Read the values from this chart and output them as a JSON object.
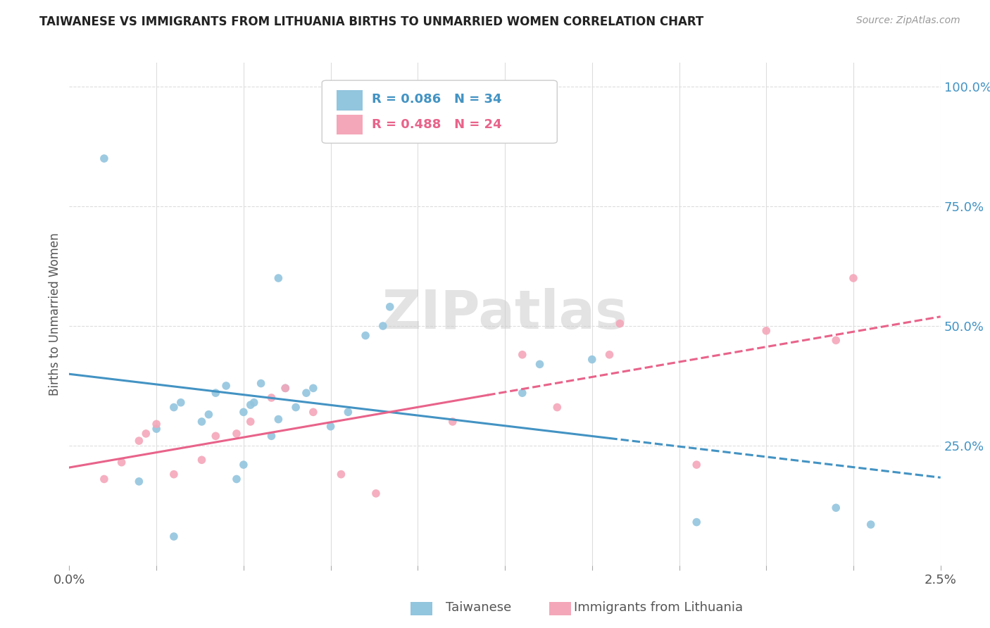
{
  "title": "TAIWANESE VS IMMIGRANTS FROM LITHUANIA BIRTHS TO UNMARRIED WOMEN CORRELATION CHART",
  "source": "Source: ZipAtlas.com",
  "ylabel": "Births to Unmarried Women",
  "legend_blue": {
    "R": "0.086",
    "N": "34",
    "label": "Taiwanese"
  },
  "legend_pink": {
    "R": "0.488",
    "N": "24",
    "label": "Immigrants from Lithuania"
  },
  "blue_color": "#92c5de",
  "pink_color": "#f4a7b9",
  "blue_line_color": "#4393c3",
  "pink_line_color": "#e8638a",
  "watermark": "ZIPatlas",
  "tw_x": [
    0.0002,
    0.00025,
    0.0003,
    0.00032,
    0.00038,
    0.0004,
    0.00042,
    0.00045,
    0.00048,
    0.0005,
    0.0005,
    0.00052,
    0.00053,
    0.00055,
    0.00058,
    0.0006,
    0.00062,
    0.00065,
    0.00068,
    0.0007,
    0.00075,
    0.0008,
    0.00085,
    0.0009,
    0.00092,
    0.0013,
    0.00135,
    0.0015,
    0.0018,
    0.0022,
    0.0023,
    0.0001,
    0.0006,
    0.0003
  ],
  "tw_y": [
    0.175,
    0.285,
    0.33,
    0.34,
    0.3,
    0.315,
    0.36,
    0.375,
    0.18,
    0.21,
    0.32,
    0.335,
    0.34,
    0.38,
    0.27,
    0.305,
    0.37,
    0.33,
    0.36,
    0.37,
    0.29,
    0.32,
    0.48,
    0.5,
    0.54,
    0.36,
    0.42,
    0.43,
    0.09,
    0.12,
    0.085,
    0.85,
    0.6,
    0.06
  ],
  "lith_x": [
    0.0001,
    0.00015,
    0.0002,
    0.00022,
    0.00025,
    0.0003,
    0.00038,
    0.00042,
    0.00048,
    0.00052,
    0.00058,
    0.00062,
    0.0007,
    0.00078,
    0.00088,
    0.0011,
    0.0013,
    0.0014,
    0.00155,
    0.00158,
    0.0018,
    0.002,
    0.0022,
    0.00225
  ],
  "lith_y": [
    0.18,
    0.215,
    0.26,
    0.275,
    0.295,
    0.19,
    0.22,
    0.27,
    0.275,
    0.3,
    0.35,
    0.37,
    0.32,
    0.19,
    0.15,
    0.3,
    0.44,
    0.33,
    0.44,
    0.505,
    0.21,
    0.49,
    0.47,
    0.6
  ],
  "xlim": [
    0.0,
    0.0025
  ],
  "ylim": [
    0.0,
    1.05
  ],
  "yticks": [
    0.25,
    0.5,
    0.75,
    1.0
  ],
  "yticklabels": [
    "25.0%",
    "50.0%",
    "75.0%",
    "100.0%"
  ],
  "xtick_left_label": "0.0%",
  "xtick_right_label": "2.5%",
  "bg_color": "#ffffff",
  "grid_color": "#dddddd",
  "right_axis_color": "#4393c3"
}
